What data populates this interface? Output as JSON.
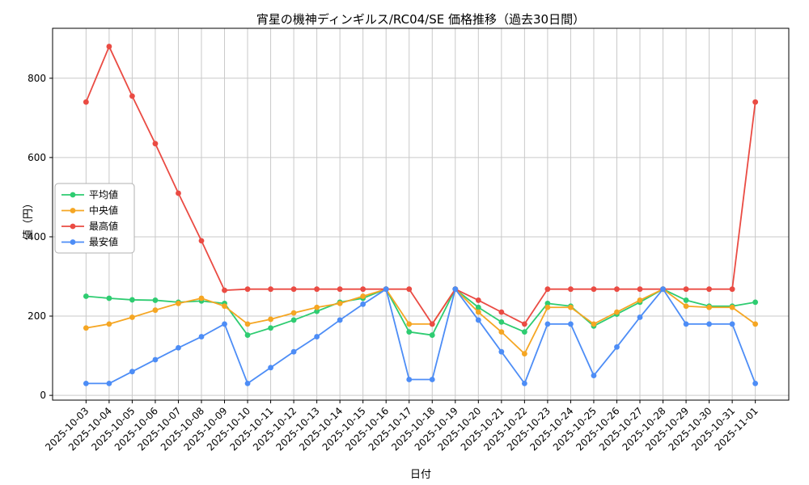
{
  "chart_data": {
    "type": "line",
    "title": "宵星の機神ディンギルス/RC04/SE 価格推移（過去30日間）",
    "xlabel": "日付",
    "ylabel": "値（円）",
    "grid": true,
    "legend_position": "center left",
    "marker": "o",
    "yticks": [
      0,
      200,
      400,
      600,
      800
    ],
    "ylim": [
      -12,
      926
    ],
    "xlim": [
      -1.45,
      30.45
    ],
    "x": [
      "2025-10-03",
      "2025-10-04",
      "2025-10-05",
      "2025-10-06",
      "2025-10-07",
      "2025-10-08",
      "2025-10-09",
      "2025-10-10",
      "2025-10-11",
      "2025-10-12",
      "2025-10-13",
      "2025-10-14",
      "2025-10-15",
      "2025-10-16",
      "2025-10-17",
      "2025-10-18",
      "2025-10-19",
      "2025-10-20",
      "2025-10-21",
      "2025-10-22",
      "2025-10-23",
      "2025-10-24",
      "2025-10-25",
      "2025-10-26",
      "2025-10-27",
      "2025-10-28",
      "2025-10-29",
      "2025-10-30",
      "2025-10-31",
      "2025-11-01"
    ],
    "series": [
      {
        "id": "average",
        "label": "平均値",
        "color": "#2ecc71",
        "values": [
          250,
          245,
          241,
          240,
          235,
          238,
          232,
          152,
          170,
          190,
          212,
          235,
          245,
          268,
          160,
          152,
          268,
          222,
          185,
          160,
          232,
          225,
          175,
          205,
          235,
          268,
          240,
          225,
          225,
          235
        ]
      },
      {
        "id": "median",
        "label": "中央値",
        "color": "#f5a623",
        "values": [
          170,
          180,
          197,
          215,
          232,
          245,
          225,
          180,
          192,
          208,
          222,
          232,
          250,
          268,
          180,
          180,
          268,
          210,
          160,
          105,
          222,
          222,
          180,
          210,
          240,
          268,
          225,
          222,
          222,
          180
        ]
      },
      {
        "id": "max",
        "label": "最高値",
        "color": "#ea4b43",
        "values": [
          740,
          880,
          755,
          635,
          510,
          390,
          265,
          268,
          268,
          268,
          268,
          268,
          268,
          268,
          268,
          180,
          268,
          240,
          210,
          180,
          268,
          268,
          268,
          268,
          268,
          268,
          268,
          268,
          268,
          740
        ]
      },
      {
        "id": "min",
        "label": "最安値",
        "color": "#4d8df6",
        "values": [
          30,
          30,
          60,
          90,
          120,
          148,
          180,
          30,
          70,
          110,
          148,
          190,
          230,
          268,
          40,
          40,
          268,
          190,
          110,
          30,
          180,
          180,
          50,
          122,
          197,
          268,
          180,
          180,
          180,
          30
        ]
      }
    ]
  }
}
